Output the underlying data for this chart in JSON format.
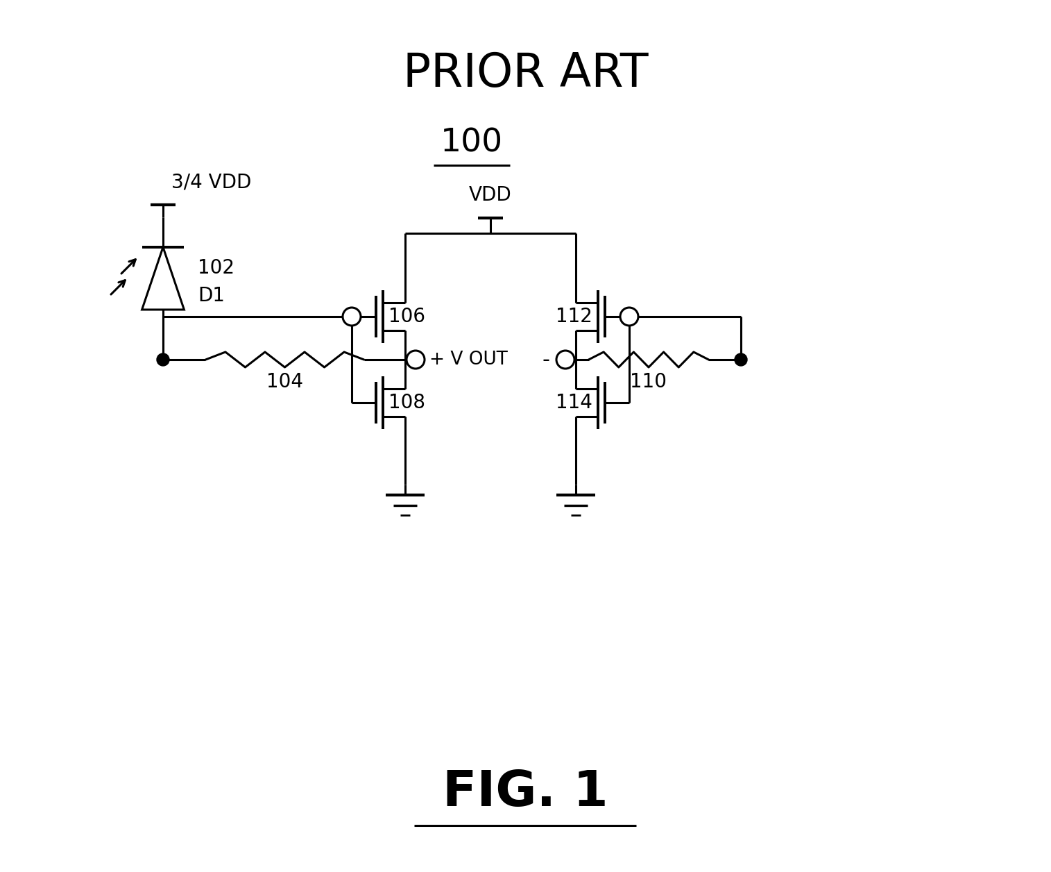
{
  "title": "PRIOR ART",
  "fig_label": "FIG. 1",
  "circuit_label": "100",
  "background_color": "#ffffff",
  "line_color": "#000000",
  "lw": 2.2,
  "title_fontsize": 48,
  "circuit_label_fontsize": 34,
  "component_fontsize": 20,
  "fig_label_fontsize": 52,
  "vdd_label_fontsize": 20,
  "vout_fontsize": 19
}
